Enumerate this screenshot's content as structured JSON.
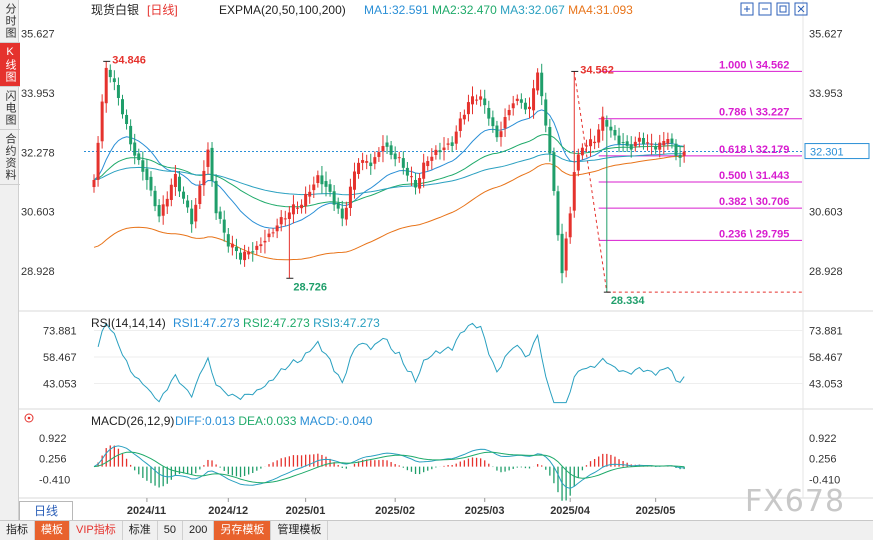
{
  "sidebar": {
    "tabs": [
      "分时图",
      "K线图",
      "闪电图",
      "合约资料"
    ],
    "active": 1
  },
  "period_tab": "日线",
  "watermark": "FX678",
  "bottom_bar": {
    "items": [
      "指标",
      "模板",
      "VIP指标",
      "标准",
      "50",
      "200",
      "另存模板",
      "管理模板"
    ]
  },
  "colors": {
    "up": "#e5322d",
    "down": "#1f9e6a",
    "ma1": "#2a8fd6",
    "ma2": "#1faa6a",
    "ma3": "#2aa0c0",
    "ma4": "#e8741a",
    "fib": "#d81ccf",
    "rsi": "#2aa0c0"
  },
  "icons": [
    "plus-square-icon",
    "minus-square-icon",
    "restore-icon",
    "close-square-icon"
  ],
  "chart_data": [
    {
      "type": "candlestick",
      "title": "现货白银",
      "period_label": "[日线]",
      "indicator_label": "EXPMA(20,50,100,200)",
      "ma_legend": [
        "MA1:32.591",
        "MA2:32.470",
        "MA3:32.067",
        "MA4:31.093"
      ],
      "ylim": [
        28.0,
        35.9
      ],
      "y_ticks": [
        35.627,
        33.953,
        32.278,
        30.603,
        28.928
      ],
      "y_tick_labels_left": [
        "35.627",
        "33.953",
        "32.278",
        "30.603",
        "28.928"
      ],
      "y_tick_labels_right": [
        "35.627",
        "33.953",
        "32.278",
        "30.603",
        "28.928"
      ],
      "current_price": 32.301,
      "current_price_label": "32.301",
      "high_annotations": [
        {
          "label": "34.846",
          "value": 34.846,
          "bar": 3
        },
        {
          "label": "34.562",
          "value": 34.562,
          "bar": 118
        }
      ],
      "low_annotations": [
        {
          "label": "28.726",
          "value": 28.726,
          "bar": 48
        },
        {
          "label": "28.334",
          "value": 28.334,
          "bar": 126
        }
      ],
      "fibonacci": [
        {
          "label": "1.000 \\ 34.562",
          "value": 34.562
        },
        {
          "label": "0.786 \\ 33.227",
          "value": 33.227
        },
        {
          "label": "0.618 \\ 32.179",
          "value": 32.179
        },
        {
          "label": "0.500 \\ 31.443",
          "value": 31.443
        },
        {
          "label": "0.382 \\ 30.706",
          "value": 30.706
        },
        {
          "label": "0.236 \\ 29.795",
          "value": 29.795
        }
      ],
      "x_labels": [
        "2024/11",
        "2024/12",
        "2025/01",
        "2025/02",
        "2025/03",
        "2025/04",
        "2025/05"
      ],
      "x_label_bars": [
        13,
        33,
        52,
        74,
        96,
        117,
        138
      ],
      "anchors": [
        [
          0,
          31.5
        ],
        [
          3,
          34.6
        ],
        [
          6,
          33.8
        ],
        [
          9,
          32.6
        ],
        [
          13,
          31.6
        ],
        [
          16,
          30.4
        ],
        [
          20,
          31.5
        ],
        [
          24,
          30.4
        ],
        [
          28,
          32.4
        ],
        [
          30,
          30.6
        ],
        [
          33,
          29.6
        ],
        [
          36,
          29.3
        ],
        [
          39,
          29.6
        ],
        [
          44,
          30.1
        ],
        [
          48,
          30.5
        ],
        [
          51,
          30.8
        ],
        [
          55,
          31.7
        ],
        [
          58,
          31.2
        ],
        [
          61,
          30.3
        ],
        [
          65,
          32.0
        ],
        [
          68,
          32.0
        ],
        [
          71,
          32.6
        ],
        [
          75,
          32.0
        ],
        [
          79,
          31.2
        ],
        [
          81,
          31.9
        ],
        [
          84,
          32.4
        ],
        [
          88,
          32.6
        ],
        [
          92,
          33.6
        ],
        [
          95,
          33.8
        ],
        [
          99,
          32.8
        ],
        [
          103,
          33.8
        ],
        [
          107,
          33.4
        ],
        [
          109,
          34.5
        ],
        [
          112,
          32.3
        ],
        [
          115,
          29.0
        ],
        [
          117,
          30.7
        ],
        [
          118,
          31.8
        ],
        [
          120,
          32.4
        ],
        [
          123,
          32.5
        ],
        [
          125,
          33.2
        ],
        [
          127,
          32.9
        ],
        [
          131,
          32.5
        ],
        [
          134,
          32.6
        ],
        [
          138,
          32.3
        ],
        [
          141,
          32.7
        ],
        [
          143,
          32.3
        ],
        [
          145,
          32.3
        ]
      ],
      "rsi": {
        "label": "RSI(14,14,14)",
        "legend": [
          "RSI1:47.273",
          "RSI2:47.273",
          "RSI3:47.273"
        ],
        "y_ticks": [
          73.881,
          58.467,
          43.053
        ],
        "y_tick_labels_left": [
          "73.881",
          "58.467",
          "43.053"
        ],
        "y_tick_labels_right": [
          "73.881",
          "58.467",
          "43.053"
        ],
        "ylim": [
          30,
          80
        ]
      },
      "macd": {
        "label": "MACD(26,12,9)",
        "legend": [
          "DIFF:0.013",
          "DEA:0.033",
          "MACD:-0.040"
        ],
        "y_ticks": [
          0.922,
          0.256,
          -0.41
        ],
        "y_tick_labels_left": [
          "0.922",
          "0.256",
          "-0.410"
        ],
        "y_tick_labels_right": [
          "0.922",
          "0.256",
          "-0.410"
        ],
        "ylim": [
          -0.95,
          1.25
        ]
      }
    }
  ]
}
